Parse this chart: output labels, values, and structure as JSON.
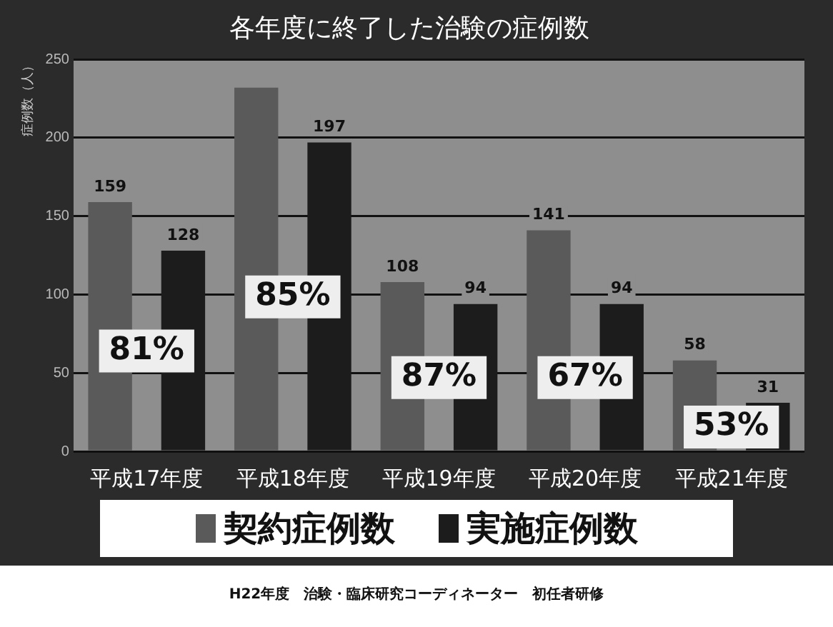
{
  "chart_data": {
    "type": "bar",
    "title": "各年度に終了した治験の症例数",
    "ylabel": "症例数（人）",
    "categories": [
      "平成17年度",
      "平成18年度",
      "平成19年度",
      "平成20年度",
      "平成21年度"
    ],
    "series": [
      {
        "name": "契約症例数",
        "color": "#5a5a5a",
        "values": [
          159,
          232,
          108,
          141,
          58
        ],
        "value_labels": [
          "159",
          null,
          "108",
          "141",
          "58"
        ]
      },
      {
        "name": "実施症例数",
        "color": "#1c1c1c",
        "values": [
          128,
          197,
          94,
          94,
          31
        ],
        "value_labels": [
          "128",
          "197",
          "94",
          "94",
          "31"
        ]
      }
    ],
    "ylim": [
      0,
      250
    ],
    "yticks": [
      0,
      50,
      100,
      150,
      200,
      250
    ],
    "grid": "y",
    "legend": "bottom",
    "annotations": [
      "81%",
      "85%",
      "87%",
      "67%",
      "53%",
      "H22年度　治験・臨床研究コーディネーター　初任者研修"
    ]
  }
}
